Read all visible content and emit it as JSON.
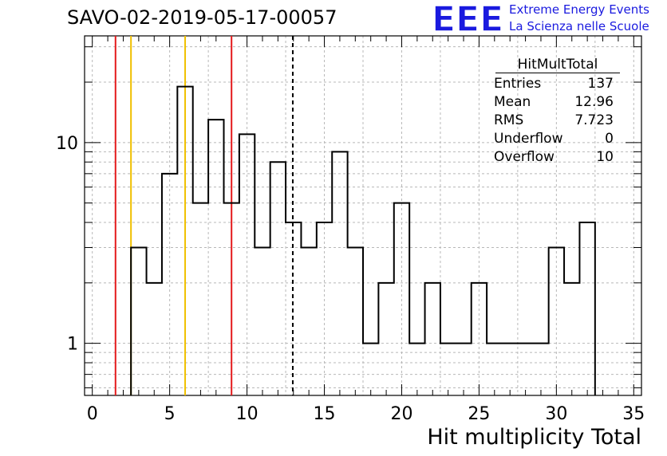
{
  "header": {
    "title": "SAVO-02-2019-05-17-00057",
    "logo_letters": "EEE",
    "logo_line1": "Extreme Energy Events",
    "logo_line2": "La Scienza nelle Scuole"
  },
  "stats_box": {
    "title": "HitMultTotal",
    "rows": [
      {
        "key": "Entries",
        "value": "137"
      },
      {
        "key": "Mean",
        "value": "12.96"
      },
      {
        "key": "RMS",
        "value": "7.723"
      },
      {
        "key": "Underflow",
        "value": "0"
      },
      {
        "key": "Overflow",
        "value": "10"
      }
    ]
  },
  "colors": {
    "histogram": "#000000",
    "red_lines": "#e41a1c",
    "yellow_lines": "#f0c000",
    "mean_line": "#000000",
    "grid": "#b8b8b8",
    "logo": "#1a1adf"
  },
  "chart_data": {
    "type": "histogram",
    "xlabel": "Hit multiplicity Total",
    "ylabel": "",
    "log_y": true,
    "xlim": [
      -0.5,
      35.5
    ],
    "ylim": [
      0.55,
      34
    ],
    "bin_width": 1,
    "bin_edges_start": 2.5,
    "counts": [
      3,
      2,
      7,
      19,
      5,
      13,
      5,
      11,
      3,
      8,
      4,
      3,
      4,
      9,
      3,
      1,
      2,
      5,
      1,
      2,
      1,
      1,
      2,
      1,
      1,
      1,
      1,
      3,
      2,
      4
    ],
    "x_ticks": [
      0,
      5,
      10,
      15,
      20,
      25,
      30,
      35
    ],
    "x_tick_labels": [
      "0",
      "5",
      "10",
      "15",
      "20",
      "25",
      "30",
      "35"
    ],
    "y_ticks": [
      1,
      10
    ],
    "y_tick_labels": [
      "1",
      "10"
    ],
    "vertical_lines": [
      {
        "x": 1.5,
        "color": "red"
      },
      {
        "x": 2.5,
        "color": "yellow"
      },
      {
        "x": 6.0,
        "color": "yellow"
      },
      {
        "x": 9.0,
        "color": "red"
      },
      {
        "x": 12.96,
        "color": "black",
        "style": "dashed"
      }
    ],
    "grid": true
  }
}
